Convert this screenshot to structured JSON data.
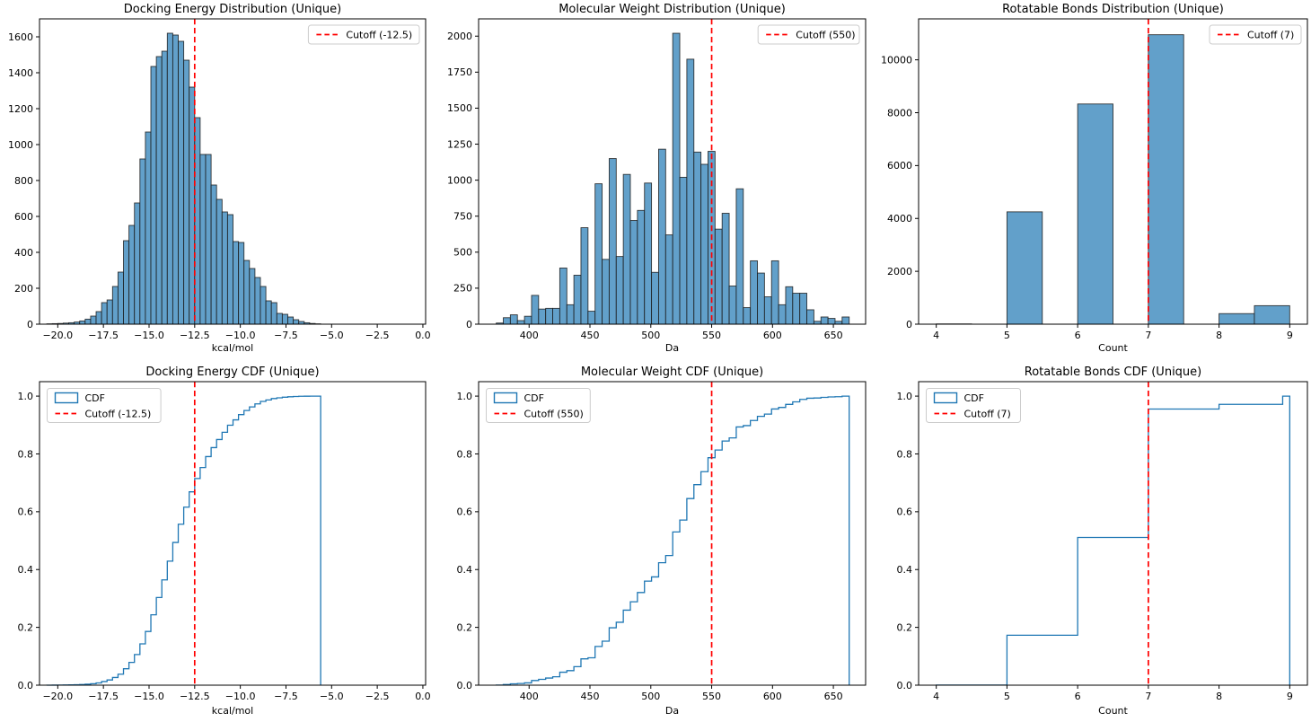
{
  "figure": {
    "background": "#ffffff",
    "colors": {
      "bar_fill": "#62a0ca",
      "bar_edge": "#1a1a1a",
      "cdf_line": "#1f77b4",
      "cutoff_line": "#ff0000",
      "legend_border": "#cccccc",
      "axis_color": "#000000",
      "text_color": "#000000"
    }
  },
  "chart_data": [
    {
      "id": "docking-energy-distribution",
      "type": "histogram",
      "title": "Docking Energy Distribution (Unique)",
      "xlabel": "kcal/mol",
      "xlim": [
        -21.0,
        0.15
      ],
      "ylim": [
        0,
        1700
      ],
      "xticks": [
        -20.0,
        -17.5,
        -15.0,
        -12.5,
        -10.0,
        -7.5,
        -5.0,
        -2.5,
        0.0
      ],
      "xtick_labels": [
        "−20.0",
        "−17.5",
        "−15.0",
        "−12.5",
        "−10.0",
        "−7.5",
        "−5.0",
        "−2.5",
        "0.0"
      ],
      "yticks": [
        0,
        200,
        400,
        600,
        800,
        1000,
        1200,
        1400,
        1600
      ],
      "ytick_labels": [
        "0",
        "200",
        "400",
        "600",
        "800",
        "1000",
        "1200",
        "1400",
        "1600"
      ],
      "bins": {
        "start": -20.6,
        "width": 0.3
      },
      "values": [
        2,
        3,
        4,
        6,
        8,
        12,
        18,
        28,
        45,
        70,
        120,
        135,
        210,
        290,
        465,
        550,
        675,
        920,
        1070,
        1435,
        1490,
        1520,
        1620,
        1610,
        1575,
        1470,
        1320,
        1150,
        945,
        945,
        775,
        695,
        625,
        610,
        460,
        455,
        355,
        310,
        260,
        210,
        130,
        120,
        60,
        55,
        40,
        25,
        15,
        8,
        4,
        2
      ],
      "cutoff": {
        "value": -12.5,
        "label": "Cutoff (-12.5)"
      },
      "legend": {
        "loc": "upper right",
        "entries": [
          {
            "sample": "dashed",
            "color": "#ff0000",
            "label": "Cutoff (-12.5)"
          }
        ]
      }
    },
    {
      "id": "molecular-weight-distribution",
      "type": "histogram",
      "title": "Molecular Weight Distribution (Unique)",
      "xlabel": "Da",
      "xlim": [
        358.5,
        676.5
      ],
      "ylim": [
        0,
        2120
      ],
      "xticks": [
        400,
        450,
        500,
        550,
        600,
        650
      ],
      "xtick_labels": [
        "400",
        "450",
        "500",
        "550",
        "600",
        "650"
      ],
      "yticks": [
        0,
        250,
        500,
        750,
        1000,
        1250,
        1500,
        1750,
        2000
      ],
      "ytick_labels": [
        "0",
        "250",
        "500",
        "750",
        "1000",
        "1250",
        "1500",
        "1750",
        "2000"
      ],
      "bins": {
        "start": 373,
        "width": 5.8
      },
      "values": [
        8,
        45,
        65,
        25,
        55,
        200,
        105,
        110,
        110,
        390,
        135,
        340,
        670,
        90,
        975,
        450,
        1150,
        470,
        1040,
        720,
        790,
        980,
        360,
        1215,
        620,
        2020,
        1020,
        1840,
        1195,
        1110,
        1200,
        660,
        770,
        265,
        940,
        115,
        440,
        355,
        190,
        440,
        135,
        260,
        215,
        215,
        100,
        20,
        50,
        40,
        20,
        50
      ],
      "cutoff": {
        "value": 550,
        "label": "Cutoff (550)"
      },
      "legend": {
        "loc": "upper right",
        "entries": [
          {
            "sample": "dashed",
            "color": "#ff0000",
            "label": "Cutoff (550)"
          }
        ]
      }
    },
    {
      "id": "rotatable-bonds-distribution",
      "type": "histogram",
      "title": "Rotatable Bonds Distribution (Unique)",
      "xlabel": "Count",
      "xlim": [
        3.75,
        9.25
      ],
      "ylim": [
        0,
        11550
      ],
      "xticks": [
        4,
        5,
        6,
        7,
        8,
        9
      ],
      "xtick_labels": [
        "4",
        "5",
        "6",
        "7",
        "8",
        "9"
      ],
      "yticks": [
        0,
        2000,
        4000,
        6000,
        8000,
        10000
      ],
      "ytick_labels": [
        "0",
        "2000",
        "4000",
        "6000",
        "8000",
        "10000"
      ],
      "bins": {
        "start": 4.0,
        "width": 0.5
      },
      "values": [
        10,
        0,
        4250,
        0,
        8330,
        0,
        10950,
        0,
        400,
        700
      ],
      "cutoff": {
        "value": 7,
        "label": "Cutoff (7)"
      },
      "legend": {
        "loc": "upper right",
        "entries": [
          {
            "sample": "dashed",
            "color": "#ff0000",
            "label": "Cutoff (7)"
          }
        ]
      }
    },
    {
      "id": "docking-energy-cdf",
      "type": "cdf",
      "title": "Docking Energy CDF (Unique)",
      "xlabel": "kcal/mol",
      "xlim": [
        -21.0,
        0.15
      ],
      "ylim": [
        0,
        1.05
      ],
      "xticks": [
        -20.0,
        -17.5,
        -15.0,
        -12.5,
        -10.0,
        -7.5,
        -5.0,
        -2.5,
        0.0
      ],
      "xtick_labels": [
        "−20.0",
        "−17.5",
        "−15.0",
        "−12.5",
        "−10.0",
        "−7.5",
        "−5.0",
        "−2.5",
        "0.0"
      ],
      "yticks": [
        0.0,
        0.2,
        0.4,
        0.6,
        0.8,
        1.0
      ],
      "ytick_labels": [
        "0.0",
        "0.2",
        "0.4",
        "0.6",
        "0.8",
        "1.0"
      ],
      "bins": {
        "start": -20.6,
        "width": 0.3
      },
      "values": [
        2,
        3,
        4,
        6,
        8,
        12,
        18,
        28,
        45,
        70,
        120,
        135,
        210,
        290,
        465,
        550,
        675,
        920,
        1070,
        1435,
        1490,
        1520,
        1620,
        1610,
        1575,
        1470,
        1320,
        1150,
        945,
        945,
        775,
        695,
        625,
        610,
        460,
        455,
        355,
        310,
        260,
        210,
        130,
        120,
        60,
        55,
        40,
        25,
        15,
        8,
        4,
        2
      ],
      "cutoff": {
        "value": -12.5,
        "label": "Cutoff (-12.5)"
      },
      "legend": {
        "loc": "upper left",
        "entries": [
          {
            "sample": "patch",
            "color": "#1f77b4",
            "label": "CDF"
          },
          {
            "sample": "dashed",
            "color": "#ff0000",
            "label": "Cutoff (-12.5)"
          }
        ]
      }
    },
    {
      "id": "molecular-weight-cdf",
      "type": "cdf",
      "title": "Molecular Weight CDF (Unique)",
      "xlabel": "Da",
      "xlim": [
        358.5,
        676.5
      ],
      "ylim": [
        0,
        1.05
      ],
      "xticks": [
        400,
        450,
        500,
        550,
        600,
        650
      ],
      "xtick_labels": [
        "400",
        "450",
        "500",
        "550",
        "600",
        "650"
      ],
      "yticks": [
        0.0,
        0.2,
        0.4,
        0.6,
        0.8,
        1.0
      ],
      "ytick_labels": [
        "0.0",
        "0.2",
        "0.4",
        "0.6",
        "0.8",
        "1.0"
      ],
      "bins": {
        "start": 373,
        "width": 5.8
      },
      "values": [
        8,
        45,
        65,
        25,
        55,
        200,
        105,
        110,
        110,
        390,
        135,
        340,
        670,
        90,
        975,
        450,
        1150,
        470,
        1040,
        720,
        790,
        980,
        360,
        1215,
        620,
        2020,
        1020,
        1840,
        1195,
        1110,
        1200,
        660,
        770,
        265,
        940,
        115,
        440,
        355,
        190,
        440,
        135,
        260,
        215,
        215,
        100,
        20,
        50,
        40,
        20,
        50
      ],
      "cutoff": {
        "value": 550,
        "label": "Cutoff (550)"
      },
      "legend": {
        "loc": "upper left",
        "entries": [
          {
            "sample": "patch",
            "color": "#1f77b4",
            "label": "CDF"
          },
          {
            "sample": "dashed",
            "color": "#ff0000",
            "label": "Cutoff (550)"
          }
        ]
      }
    },
    {
      "id": "rotatable-bonds-cdf",
      "type": "cdf",
      "title": "Rotatable Bonds CDF (Unique)",
      "xlabel": "Count",
      "xlim": [
        3.75,
        9.25
      ],
      "ylim": [
        0,
        1.05
      ],
      "xticks": [
        4,
        5,
        6,
        7,
        8,
        9
      ],
      "xtick_labels": [
        "4",
        "5",
        "6",
        "7",
        "8",
        "9"
      ],
      "yticks": [
        0.0,
        0.2,
        0.4,
        0.6,
        0.8,
        1.0
      ],
      "ytick_labels": [
        "0.0",
        "0.2",
        "0.4",
        "0.6",
        "0.8",
        "1.0"
      ],
      "bins": {
        "start": 4.0,
        "width": 0.1
      },
      "values": [
        10,
        0,
        0,
        0,
        0,
        0,
        0,
        0,
        0,
        0,
        4250,
        0,
        0,
        0,
        0,
        0,
        0,
        0,
        0,
        0,
        8330,
        0,
        0,
        0,
        0,
        0,
        0,
        0,
        0,
        0,
        10950,
        0,
        0,
        0,
        0,
        0,
        0,
        0,
        0,
        0,
        400,
        0,
        0,
        0,
        0,
        0,
        0,
        0,
        0,
        700
      ],
      "cutoff": {
        "value": 7,
        "label": "Cutoff (7)"
      },
      "legend": {
        "loc": "upper left",
        "entries": [
          {
            "sample": "patch",
            "color": "#1f77b4",
            "label": "CDF"
          },
          {
            "sample": "dashed",
            "color": "#ff0000",
            "label": "Cutoff (7)"
          }
        ]
      }
    }
  ]
}
